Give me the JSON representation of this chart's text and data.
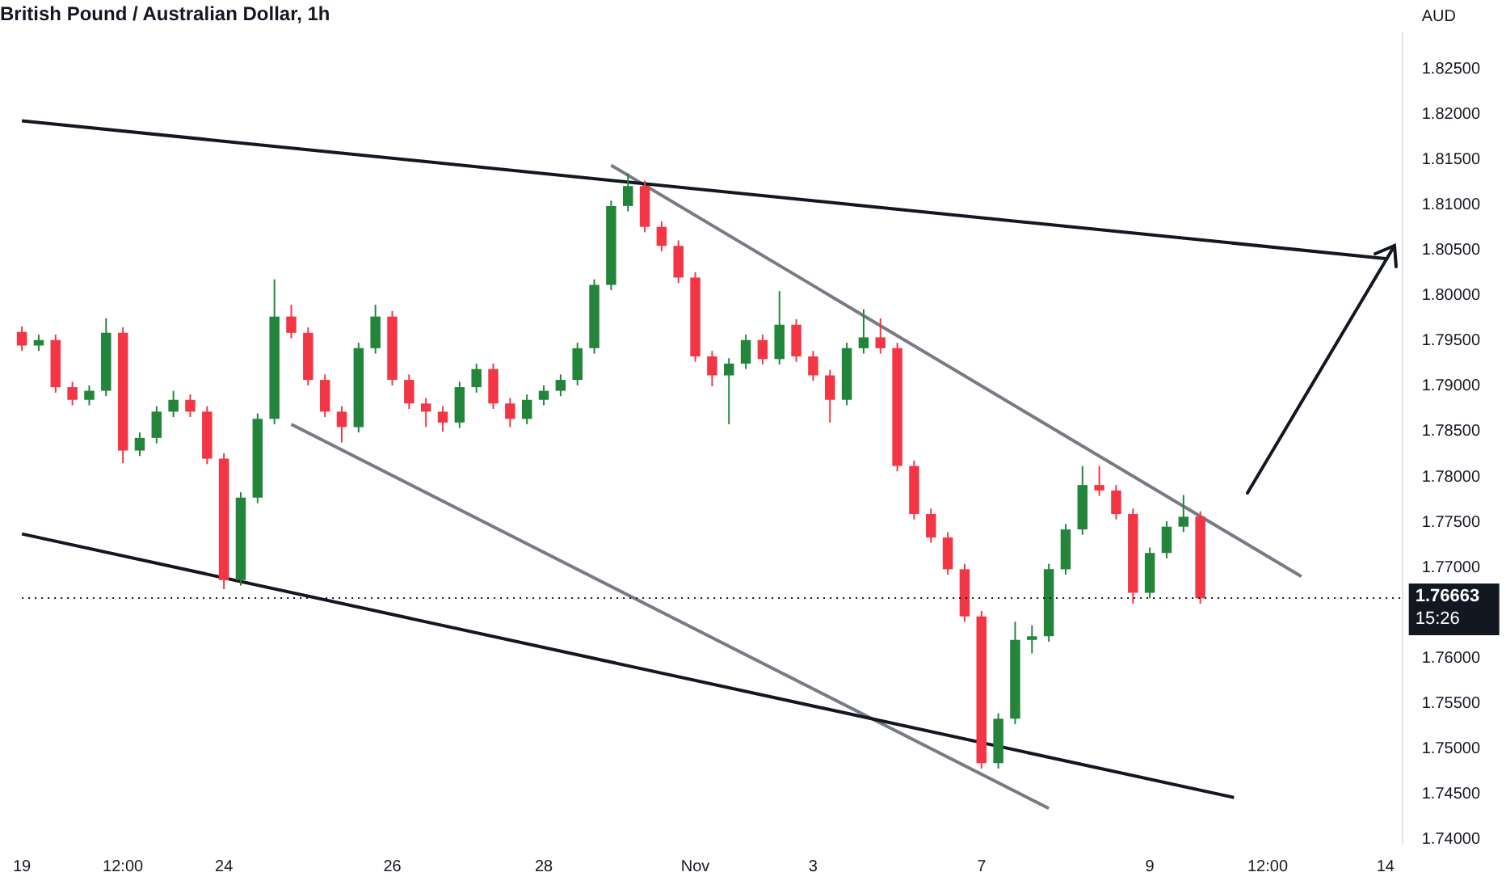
{
  "chart_data": {
    "type": "candlestick",
    "title": "British Pound / Australian Dollar, 1h",
    "ylabel": "AUD",
    "categories": [
      "19",
      null,
      null,
      null,
      null,
      null,
      "12:00",
      null,
      null,
      null,
      null,
      null,
      "24",
      null,
      null,
      null,
      null,
      null,
      null,
      null,
      null,
      null,
      "26",
      null,
      null,
      null,
      null,
      null,
      null,
      null,
      null,
      "28",
      null,
      null,
      null,
      null,
      null,
      null,
      null,
      null,
      "Nov",
      null,
      null,
      null,
      null,
      null,
      null,
      "3",
      null,
      null,
      null,
      null,
      null,
      null,
      null,
      null,
      null,
      "7",
      null,
      null,
      null,
      null,
      null,
      null,
      null,
      null,
      null,
      "9",
      null,
      null,
      null,
      null,
      null,
      null,
      "12:00",
      null,
      null,
      null,
      null,
      null,
      null,
      "14",
      null
    ],
    "ohlc": [
      [
        1.796,
        1.7966,
        1.7939,
        1.7945
      ],
      [
        1.7945,
        1.7957,
        1.7939,
        1.7951
      ],
      [
        1.7951,
        1.7957,
        1.7893,
        1.7899
      ],
      [
        1.7899,
        1.7905,
        1.7879,
        1.7885
      ],
      [
        1.7885,
        1.7901,
        1.7879,
        1.7895
      ],
      [
        1.7895,
        1.7975,
        1.7889,
        1.7959
      ],
      [
        1.7959,
        1.7965,
        1.7815,
        1.7829
      ],
      [
        1.7829,
        1.7849,
        1.7823,
        1.7843
      ],
      [
        1.7843,
        1.7878,
        1.7837,
        1.7872
      ],
      [
        1.7872,
        1.7895,
        1.7866,
        1.7885
      ],
      [
        1.7885,
        1.7891,
        1.7866,
        1.7872
      ],
      [
        1.7872,
        1.7878,
        1.7814,
        1.782
      ],
      [
        1.782,
        1.7826,
        1.7676,
        1.7686
      ],
      [
        1.7686,
        1.7783,
        1.768,
        1.7777
      ],
      [
        1.7777,
        1.787,
        1.7771,
        1.7864
      ],
      [
        1.7864,
        1.8018,
        1.7858,
        1.7977
      ],
      [
        1.7977,
        1.799,
        1.7953,
        1.7959
      ],
      [
        1.7959,
        1.7965,
        1.7901,
        1.7907
      ],
      [
        1.7907,
        1.7913,
        1.7866,
        1.7872
      ],
      [
        1.7872,
        1.7878,
        1.7838,
        1.7855
      ],
      [
        1.7855,
        1.7948,
        1.7849,
        1.7942
      ],
      [
        1.7942,
        1.799,
        1.7936,
        1.7977
      ],
      [
        1.7977,
        1.7983,
        1.7901,
        1.7907
      ],
      [
        1.7907,
        1.7913,
        1.7875,
        1.7881
      ],
      [
        1.7881,
        1.7887,
        1.7855,
        1.7872
      ],
      [
        1.7872,
        1.7878,
        1.785,
        1.786
      ],
      [
        1.786,
        1.7905,
        1.7854,
        1.7899
      ],
      [
        1.7899,
        1.7925,
        1.7893,
        1.7919
      ],
      [
        1.7919,
        1.7925,
        1.7875,
        1.7881
      ],
      [
        1.7881,
        1.7887,
        1.7855,
        1.7864
      ],
      [
        1.7864,
        1.7891,
        1.7858,
        1.7885
      ],
      [
        1.7885,
        1.7901,
        1.7879,
        1.7895
      ],
      [
        1.7895,
        1.7913,
        1.7889,
        1.7907
      ],
      [
        1.7907,
        1.7948,
        1.7901,
        1.7942
      ],
      [
        1.7942,
        1.8018,
        1.7936,
        1.8012
      ],
      [
        1.8012,
        1.8105,
        1.8006,
        1.8099
      ],
      [
        1.8099,
        1.8135,
        1.8093,
        1.8121
      ],
      [
        1.8121,
        1.8127,
        1.807,
        1.8076
      ],
      [
        1.8076,
        1.8082,
        1.8049,
        1.8055
      ],
      [
        1.8055,
        1.8061,
        1.8014,
        1.802
      ],
      [
        1.802,
        1.8026,
        1.7927,
        1.7933
      ],
      [
        1.7933,
        1.7939,
        1.79,
        1.7912
      ],
      [
        1.7912,
        1.7931,
        1.7858,
        1.7925
      ],
      [
        1.7925,
        1.7957,
        1.7919,
        1.7951
      ],
      [
        1.7951,
        1.7957,
        1.7924,
        1.793
      ],
      [
        1.793,
        1.8005,
        1.7924,
        1.7968
      ],
      [
        1.7968,
        1.7974,
        1.7927,
        1.7933
      ],
      [
        1.7933,
        1.7939,
        1.7906,
        1.7912
      ],
      [
        1.7912,
        1.7918,
        1.786,
        1.7885
      ],
      [
        1.7885,
        1.7948,
        1.7879,
        1.7942
      ],
      [
        1.7942,
        1.7985,
        1.7936,
        1.7954
      ],
      [
        1.7954,
        1.7975,
        1.7936,
        1.7942
      ],
      [
        1.7942,
        1.7948,
        1.7806,
        1.7812
      ],
      [
        1.7812,
        1.7818,
        1.7753,
        1.7759
      ],
      [
        1.7759,
        1.7765,
        1.7727,
        1.7733
      ],
      [
        1.7733,
        1.7739,
        1.7692,
        1.7698
      ],
      [
        1.7698,
        1.7704,
        1.764,
        1.7646
      ],
      [
        1.7646,
        1.7652,
        1.7478,
        1.7484
      ],
      [
        1.7484,
        1.7539,
        1.7478,
        1.7533
      ],
      [
        1.7533,
        1.764,
        1.7527,
        1.762
      ],
      [
        1.762,
        1.7636,
        1.7605,
        1.7624
      ],
      [
        1.7624,
        1.7704,
        1.7618,
        1.7698
      ],
      [
        1.7698,
        1.7748,
        1.7692,
        1.7742
      ],
      [
        1.7742,
        1.7812,
        1.7736,
        1.7791
      ],
      [
        1.7791,
        1.7812,
        1.7779,
        1.7785
      ],
      [
        1.7785,
        1.7791,
        1.7753,
        1.7759
      ],
      [
        1.7759,
        1.7765,
        1.766,
        1.7672
      ],
      [
        1.7672,
        1.7722,
        1.7666,
        1.7716
      ],
      [
        1.7716,
        1.7751,
        1.771,
        1.7745
      ],
      [
        1.7745,
        1.778,
        1.7739,
        1.7756
      ],
      [
        1.7756,
        1.7762,
        1.766,
        1.7666
      ],
      null,
      null,
      null,
      null,
      null,
      null,
      null,
      null,
      null,
      null,
      null,
      null
    ],
    "series": [
      {
        "type": "line",
        "color": "#131722",
        "values": [
          1.8193,
          null,
          null,
          null,
          null,
          null,
          null,
          null,
          null,
          null,
          null,
          null,
          null,
          null,
          null,
          null,
          null,
          null,
          null,
          null,
          null,
          null,
          null,
          null,
          null,
          null,
          null,
          null,
          null,
          null,
          null,
          null,
          null,
          null,
          null,
          null,
          null,
          null,
          null,
          null,
          null,
          null,
          null,
          null,
          null,
          null,
          null,
          null,
          null,
          null,
          null,
          null,
          null,
          null,
          null,
          null,
          null,
          null,
          null,
          null,
          null,
          null,
          null,
          null,
          null,
          null,
          null,
          null,
          null,
          null,
          null,
          null,
          null,
          null,
          null,
          null,
          null,
          null,
          null,
          null,
          null,
          1.8041,
          null
        ]
      },
      {
        "type": "line",
        "color": "#131722",
        "values": [
          1.7737,
          null,
          null,
          null,
          null,
          null,
          null,
          null,
          null,
          null,
          null,
          null,
          null,
          null,
          null,
          null,
          null,
          null,
          null,
          null,
          null,
          null,
          null,
          null,
          null,
          null,
          null,
          null,
          null,
          null,
          null,
          null,
          null,
          null,
          null,
          null,
          null,
          null,
          null,
          null,
          null,
          null,
          null,
          null,
          null,
          null,
          null,
          null,
          null,
          null,
          null,
          null,
          null,
          null,
          null,
          null,
          null,
          null,
          null,
          null,
          null,
          null,
          null,
          null,
          null,
          null,
          null,
          null,
          null,
          null,
          null,
          null,
          1.7446,
          null,
          null,
          null,
          null,
          null,
          null,
          null,
          null,
          null,
          null
        ]
      },
      {
        "type": "line",
        "color": "#787b86",
        "values": [
          null,
          null,
          null,
          null,
          null,
          null,
          null,
          null,
          null,
          null,
          null,
          null,
          null,
          null,
          null,
          null,
          null,
          null,
          null,
          null,
          null,
          null,
          null,
          null,
          null,
          null,
          null,
          null,
          null,
          null,
          null,
          null,
          null,
          null,
          null,
          1.8144,
          null,
          null,
          null,
          null,
          null,
          null,
          null,
          null,
          null,
          null,
          null,
          null,
          null,
          null,
          null,
          null,
          null,
          null,
          null,
          null,
          null,
          null,
          null,
          null,
          null,
          null,
          null,
          null,
          null,
          null,
          null,
          null,
          null,
          null,
          null,
          null,
          null,
          null,
          null,
          null,
          1.769,
          null,
          null,
          null,
          null,
          null,
          null
        ]
      },
      {
        "type": "line",
        "color": "#787b86",
        "values": [
          null,
          null,
          null,
          null,
          null,
          null,
          null,
          null,
          null,
          null,
          null,
          null,
          null,
          null,
          null,
          null,
          1.7858,
          null,
          null,
          null,
          null,
          null,
          null,
          null,
          null,
          null,
          null,
          null,
          null,
          null,
          null,
          null,
          null,
          null,
          null,
          null,
          null,
          null,
          null,
          null,
          null,
          null,
          null,
          null,
          null,
          null,
          null,
          null,
          null,
          null,
          null,
          null,
          null,
          null,
          null,
          null,
          null,
          null,
          null,
          null,
          null,
          1.7434,
          null,
          null,
          null,
          null,
          null,
          null,
          null,
          null,
          null,
          null,
          null,
          null,
          null,
          null,
          null,
          null,
          null,
          null,
          null,
          null,
          null
        ]
      }
    ],
    "ylim": [
      1.7395,
      1.829
    ],
    "yticks": [
      {
        "value": 1.74,
        "label": "1.74000"
      },
      {
        "value": 1.745,
        "label": "1.74500"
      },
      {
        "value": 1.75,
        "label": "1.75000"
      },
      {
        "value": 1.755,
        "label": "1.75500"
      },
      {
        "value": 1.76,
        "label": "1.76000"
      },
      {
        "value": 1.77,
        "label": "1.77000"
      },
      {
        "value": 1.775,
        "label": "1.77500"
      },
      {
        "value": 1.78,
        "label": "1.78000"
      },
      {
        "value": 1.785,
        "label": "1.78500"
      },
      {
        "value": 1.79,
        "label": "1.79000"
      },
      {
        "value": 1.795,
        "label": "1.79500"
      },
      {
        "value": 1.8,
        "label": "1.80000"
      },
      {
        "value": 1.805,
        "label": "1.80500"
      },
      {
        "value": 1.81,
        "label": "1.81000"
      },
      {
        "value": 1.815,
        "label": "1.81500"
      },
      {
        "value": 1.82,
        "label": "1.82000"
      },
      {
        "value": 1.825,
        "label": "1.82500"
      }
    ],
    "ref_lines": [
      {
        "axis": "y",
        "value": 1.76663,
        "label": "1.76663",
        "color": "#131722",
        "line_style": "dotted"
      }
    ],
    "annotations": [
      "15:26"
    ]
  }
}
